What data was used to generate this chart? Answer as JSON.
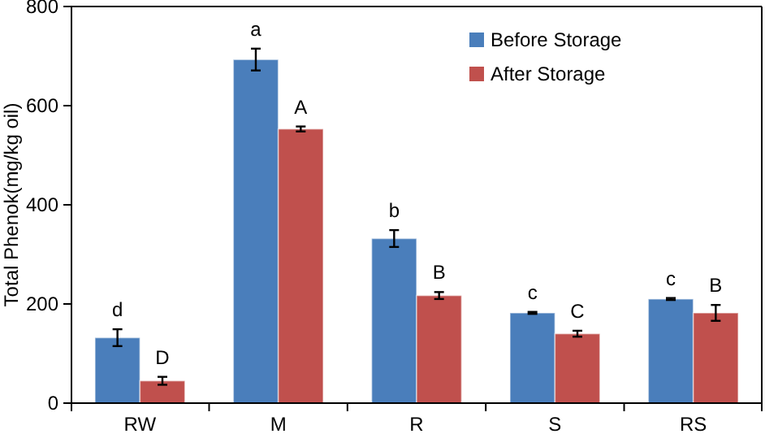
{
  "chart_data": {
    "type": "bar",
    "ylabel": "Total Phenok(mg/kg oil)",
    "categories": [
      "RW",
      "M",
      "R",
      "S",
      "RS"
    ],
    "ylim": [
      0,
      800
    ],
    "yticks": [
      0,
      200,
      400,
      600,
      800
    ],
    "grid": false,
    "legend": "top right",
    "series": [
      {
        "name": "Before Storage",
        "color": "#4a7ebb",
        "values": [
          132,
          693,
          332,
          182,
          210
        ],
        "errors": [
          17,
          22,
          17,
          2,
          2
        ],
        "value_labels": [
          "d",
          "a",
          "b",
          "c",
          "c"
        ]
      },
      {
        "name": "After Storage",
        "color": "#c0504d",
        "values": [
          45,
          553,
          217,
          140,
          182
        ],
        "errors": [
          8,
          5,
          7,
          6,
          16
        ],
        "value_labels": [
          "D",
          "A",
          "B",
          "C",
          "B"
        ]
      }
    ]
  }
}
